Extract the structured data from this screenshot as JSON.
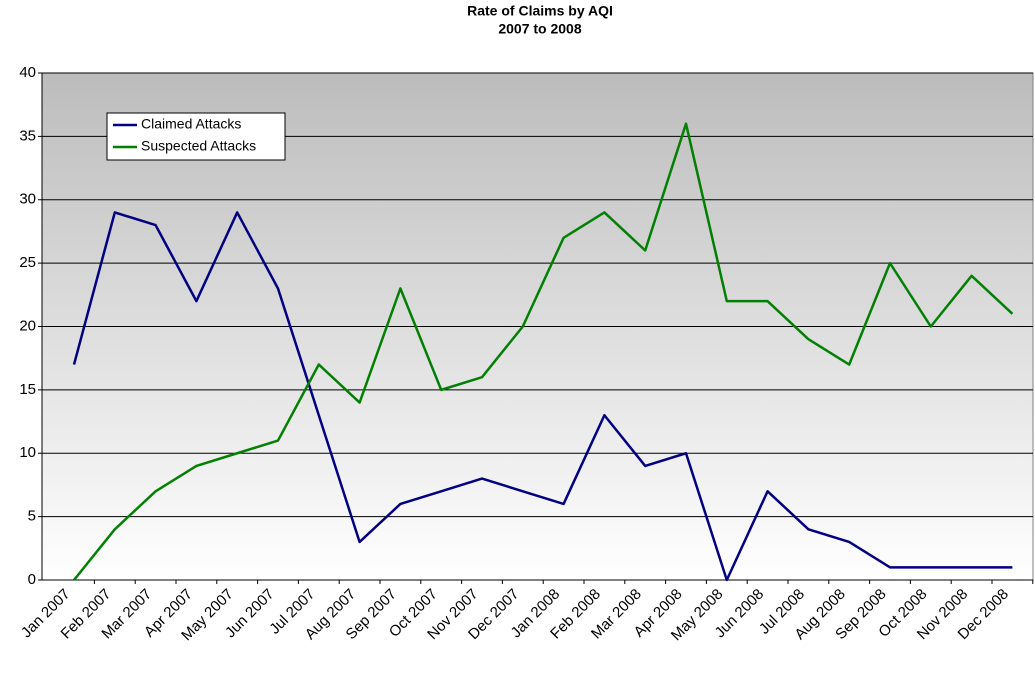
{
  "chart_data": {
    "type": "line",
    "title": "Rate of Claims by AQI",
    "subtitle": "2007 to 2008",
    "categories": [
      "Jan 2007",
      "Feb 2007",
      "Mar 2007",
      "Apr 2007",
      "May 2007",
      "Jun 2007",
      "Jul 2007",
      "Aug 2007",
      "Sep 2007",
      "Oct 2007",
      "Nov 2007",
      "Dec 2007",
      "Jan 2008",
      "Feb 2008",
      "Mar 2008",
      "Apr 2008",
      "May 2008",
      "Jun 2008",
      "Jul 2008",
      "Aug 2008",
      "Sep 2008",
      "Oct 2008",
      "Nov 2008",
      "Dec 2008"
    ],
    "series": [
      {
        "name": "Claimed Attacks",
        "color": "#000080",
        "values": [
          17,
          29,
          28,
          22,
          29,
          23,
          13,
          3,
          6,
          7,
          8,
          7,
          6,
          13,
          9,
          10,
          0,
          7,
          4,
          3,
          1,
          1,
          1,
          1
        ]
      },
      {
        "name": "Suspected Attacks",
        "color": "#008000",
        "values": [
          0,
          4,
          7,
          9,
          10,
          11,
          17,
          14,
          23,
          15,
          16,
          20,
          27,
          29,
          26,
          36,
          22,
          22,
          19,
          17,
          25,
          20,
          24,
          21
        ]
      }
    ],
    "ylim": [
      0,
      40
    ],
    "yticks": [
      0,
      5,
      10,
      15,
      20,
      25,
      30,
      35,
      40
    ],
    "grid": true,
    "legend": "upper left"
  }
}
